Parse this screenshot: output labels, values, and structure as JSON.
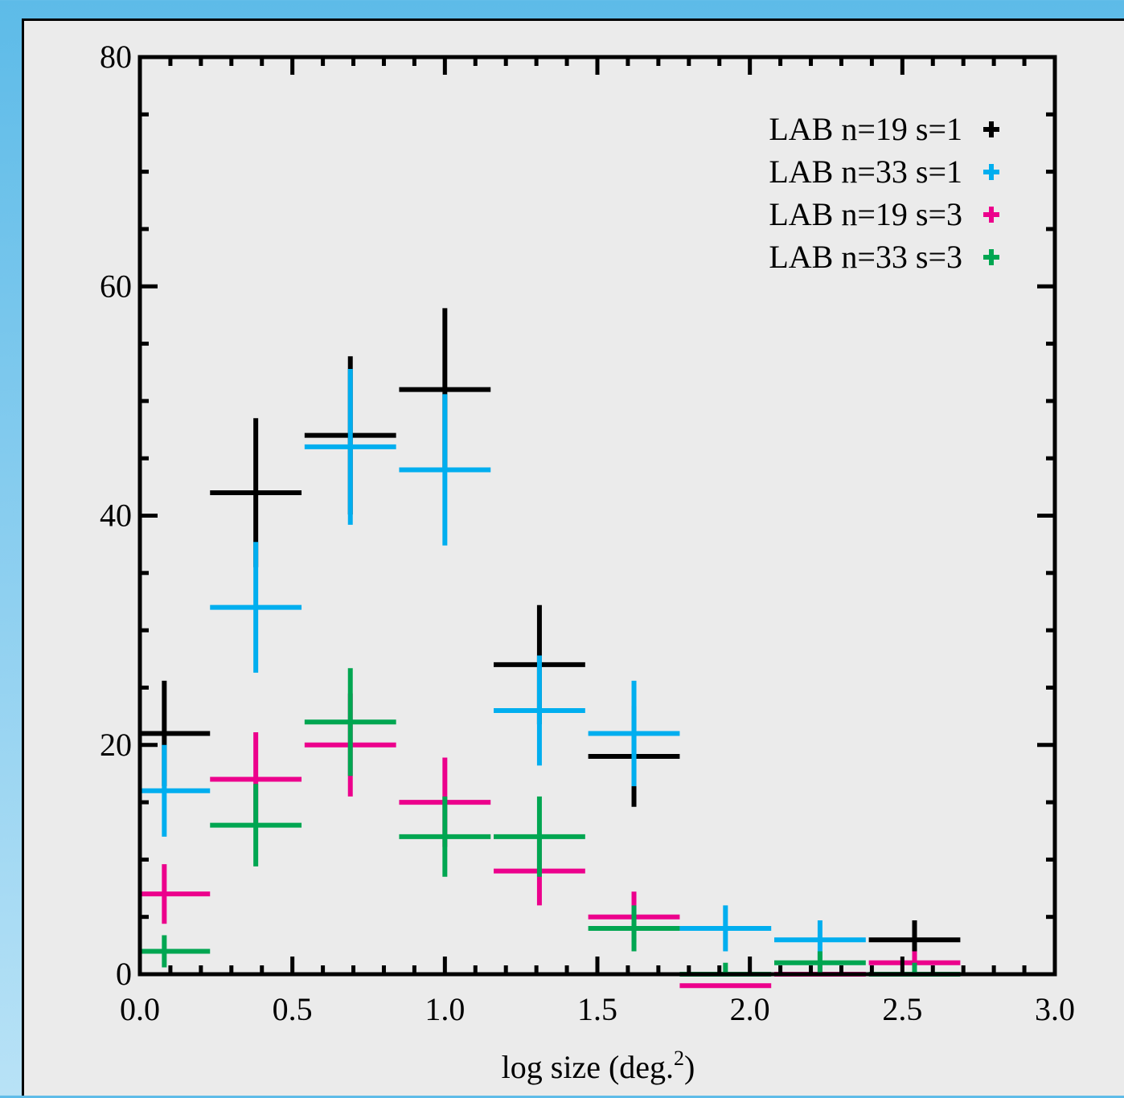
{
  "chart_data": {
    "type": "scatter",
    "title": "",
    "xlabel": "log size (deg.",
    "xlabel_superscript": "2",
    "xlabel_suffix": ")",
    "ylabel": "",
    "xlim": [
      0.0,
      3.0
    ],
    "ylim": [
      0,
      80
    ],
    "x_ticks": [
      "0.0",
      "0.5",
      "1.0",
      "1.5",
      "2.0",
      "2.5",
      "3.0"
    ],
    "y_ticks": [
      "0",
      "20",
      "40",
      "60",
      "80"
    ],
    "legend_placement": "top-right",
    "bin_width": 0.3,
    "series": [
      {
        "name": "LAB n=19 s=1",
        "color": "#000000",
        "points": [
          {
            "x": 0.08,
            "y": 21,
            "err": 4.6
          },
          {
            "x": 0.38,
            "y": 42,
            "err": 6.5
          },
          {
            "x": 0.69,
            "y": 47,
            "err": 6.9
          },
          {
            "x": 1.0,
            "y": 51,
            "err": 7.1
          },
          {
            "x": 1.31,
            "y": 27,
            "err": 5.2
          },
          {
            "x": 1.62,
            "y": 19,
            "err": 4.4
          },
          {
            "x": 2.54,
            "y": 3,
            "err": 1.7
          }
        ]
      },
      {
        "name": "LAB n=33 s=1",
        "color": "#00aeef",
        "points": [
          {
            "x": 0.08,
            "y": 16,
            "err": 4.0
          },
          {
            "x": 0.38,
            "y": 32,
            "err": 5.7
          },
          {
            "x": 0.69,
            "y": 46,
            "err": 6.8
          },
          {
            "x": 1.0,
            "y": 44,
            "err": 6.6
          },
          {
            "x": 1.31,
            "y": 23,
            "err": 4.8
          },
          {
            "x": 1.62,
            "y": 21,
            "err": 4.6
          },
          {
            "x": 1.92,
            "y": 4,
            "err": 2.0
          },
          {
            "x": 2.23,
            "y": 3,
            "err": 1.7
          }
        ]
      },
      {
        "name": "LAB n=19 s=3",
        "color": "#ec008c",
        "points": [
          {
            "x": 0.08,
            "y": 7,
            "err": 2.6
          },
          {
            "x": 0.38,
            "y": 17,
            "err": 4.1
          },
          {
            "x": 0.69,
            "y": 20,
            "err": 4.5
          },
          {
            "x": 1.0,
            "y": 15,
            "err": 3.9
          },
          {
            "x": 1.31,
            "y": 9,
            "err": 3.0
          },
          {
            "x": 1.62,
            "y": 5,
            "err": 2.2
          },
          {
            "x": 1.92,
            "y": -1,
            "err": 0
          },
          {
            "x": 2.23,
            "y": 0,
            "err": 1.0
          },
          {
            "x": 2.54,
            "y": 1,
            "err": 1.0
          }
        ]
      },
      {
        "name": "LAB n=33 s=3",
        "color": "#00a651",
        "points": [
          {
            "x": 0.08,
            "y": 2,
            "err": 1.4
          },
          {
            "x": 0.38,
            "y": 13,
            "err": 3.6
          },
          {
            "x": 0.69,
            "y": 22,
            "err": 4.7
          },
          {
            "x": 1.0,
            "y": 12,
            "err": 3.5
          },
          {
            "x": 1.31,
            "y": 12,
            "err": 3.5
          },
          {
            "x": 1.62,
            "y": 4,
            "err": 2.0
          },
          {
            "x": 1.92,
            "y": 0,
            "err": 1.0
          },
          {
            "x": 2.23,
            "y": 1,
            "err": 1.0
          },
          {
            "x": 2.54,
            "y": 0,
            "err": 1.0
          }
        ]
      }
    ]
  }
}
